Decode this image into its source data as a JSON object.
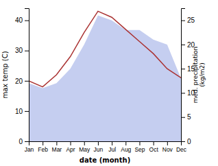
{
  "chart_data": {
    "type": "line",
    "categories": [
      "Jan",
      "Feb",
      "Mar",
      "Apr",
      "May",
      "Jun",
      "Jul",
      "Aug",
      "Sep",
      "Oct",
      "Nov",
      "Dec"
    ],
    "xlabel": "date (month)",
    "ylabel": "max temp (C)",
    "y2label": "med. precipitation\n(kg/m2)",
    "ylim": [
      0,
      44
    ],
    "yticks": [
      0,
      10,
      20,
      30,
      40
    ],
    "y2lim": [
      0,
      27.5
    ],
    "y2ticks": [
      0,
      5,
      10,
      15,
      20,
      25
    ],
    "series": [
      {
        "type": "area",
        "axis": "y2",
        "color": "#c5cef0",
        "values": [
          12,
          11,
          12,
          15,
          20,
          26,
          25,
          23,
          23,
          21,
          20,
          13
        ]
      },
      {
        "type": "line",
        "color": "#aa3333",
        "values": [
          20,
          18,
          22,
          28,
          36,
          43,
          41,
          37,
          33,
          29,
          24,
          21
        ]
      }
    ]
  }
}
